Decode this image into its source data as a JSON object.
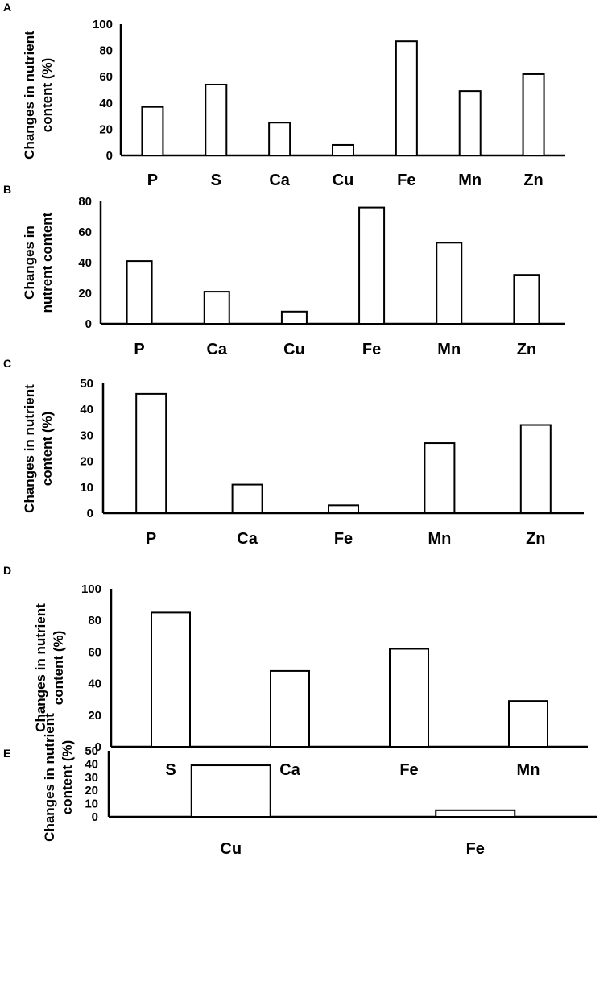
{
  "chart_data": [
    {
      "panel": "A",
      "type": "bar",
      "categories": [
        "P",
        "S",
        "Ca",
        "Cu",
        "Fe",
        "Mn",
        "Zn"
      ],
      "values": [
        37,
        54,
        25,
        8,
        87,
        49,
        62
      ],
      "ylabel": [
        "Changes in nutrient",
        "content (%)"
      ],
      "xlabel": "",
      "ylim": [
        0,
        100
      ],
      "yticks": [
        0,
        20,
        40,
        60,
        80,
        100
      ]
    },
    {
      "panel": "B",
      "type": "bar",
      "categories": [
        "P",
        "Ca",
        "Cu",
        "Fe",
        "Mn",
        "Zn"
      ],
      "values": [
        41,
        21,
        8,
        76,
        53,
        32
      ],
      "ylabel": [
        "Changes in",
        "nutrent content"
      ],
      "xlabel": "",
      "ylim": [
        0,
        80
      ],
      "yticks": [
        0,
        20,
        40,
        60,
        80
      ]
    },
    {
      "panel": "C",
      "type": "bar",
      "categories": [
        "P",
        "Ca",
        "Fe",
        "Mn",
        "Zn"
      ],
      "values": [
        46,
        11,
        3,
        27,
        34
      ],
      "ylabel": [
        "Changes in nutrient",
        "content (%)"
      ],
      "xlabel": "",
      "ylim": [
        0,
        50
      ],
      "yticks": [
        0,
        10,
        20,
        30,
        40,
        50
      ]
    },
    {
      "panel": "D",
      "type": "bar",
      "categories": [
        "S",
        "Ca",
        "Fe",
        "Mn"
      ],
      "values": [
        85,
        48,
        62,
        29
      ],
      "ylabel": [
        "Changes in nutrient",
        "content (%)"
      ],
      "xlabel": "",
      "ylim": [
        0,
        100
      ],
      "yticks": [
        0,
        20,
        40,
        60,
        80,
        100
      ]
    },
    {
      "panel": "E",
      "type": "bar",
      "categories": [
        "Cu",
        "Fe"
      ],
      "values": [
        39,
        5
      ],
      "ylabel": [
        "Changes in nutrient",
        "content (%)"
      ],
      "xlabel": "",
      "ylim": [
        0,
        50
      ],
      "yticks": [
        0,
        10,
        20,
        30,
        40,
        50
      ]
    }
  ]
}
